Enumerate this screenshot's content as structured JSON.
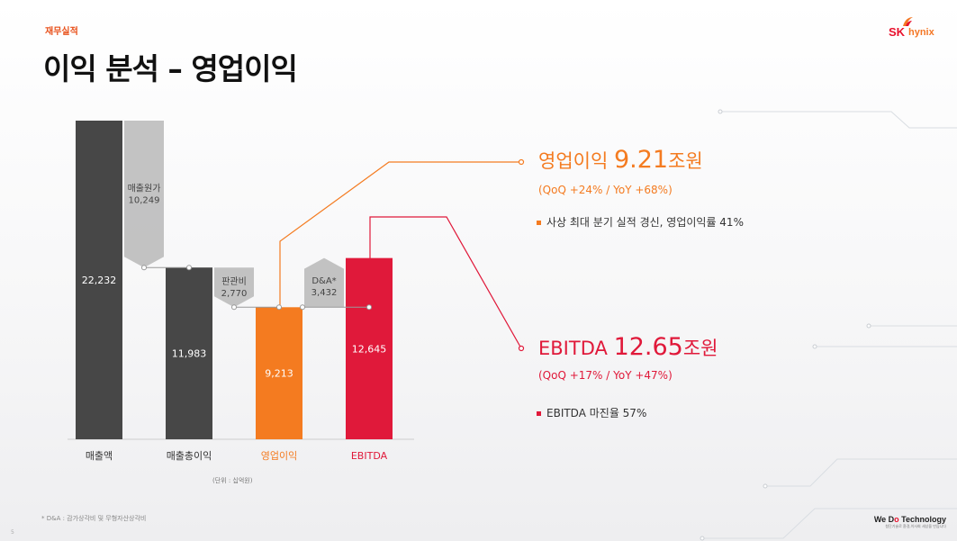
{
  "header": {
    "category": "재무실적",
    "title": "이익 분석 – 영업이익",
    "logo_sk": "SK",
    "logo_hynix": "hynix"
  },
  "colors": {
    "dark_bar": "#474747",
    "orange": "#f47b20",
    "red": "#e0193a",
    "gray_arrow": "#b9b9b9"
  },
  "chart_data": {
    "type": "bar",
    "subtype": "waterfall",
    "unit_note": "(단위 : 십억원)",
    "ylim": [
      0,
      22232
    ],
    "categories": [
      "매출액",
      "매출총이익",
      "영업이익",
      "EBITDA"
    ],
    "values": [
      22232,
      11983,
      9213,
      12645
    ],
    "value_labels": [
      "22,232",
      "11,983",
      "9,213",
      "12,645"
    ],
    "steps": [
      {
        "label": "매출원가",
        "value": 10249,
        "value_label": "10,249",
        "direction": "down"
      },
      {
        "label": "판관비",
        "value": 2770,
        "value_label": "2,770",
        "direction": "down"
      },
      {
        "label": "D&A*",
        "value": 3432,
        "value_label": "3,432",
        "direction": "up"
      }
    ]
  },
  "highlights": {
    "op_income": {
      "label": "영업이익",
      "value": "9.21",
      "unit": "조원",
      "change": "(QoQ +24% / YoY +68%)",
      "bullet": "사상 최대 분기 실적 경신, 영업이익률 41%"
    },
    "ebitda": {
      "label": "EBITDA",
      "value": "12.65",
      "unit": "조원",
      "change": "(QoQ +17% / YoY +47%)",
      "bullet": "EBITDA 마진율 57%"
    }
  },
  "footer": {
    "footnote": "* D&A : 감가상각비 및 무형자산상각비",
    "page": "5",
    "brand_pre": "We D",
    "brand_accent": "o",
    "brand_post": " Technology",
    "brand_sub": "첨단기술로 환경,이사회 세상을 만듭니다"
  }
}
